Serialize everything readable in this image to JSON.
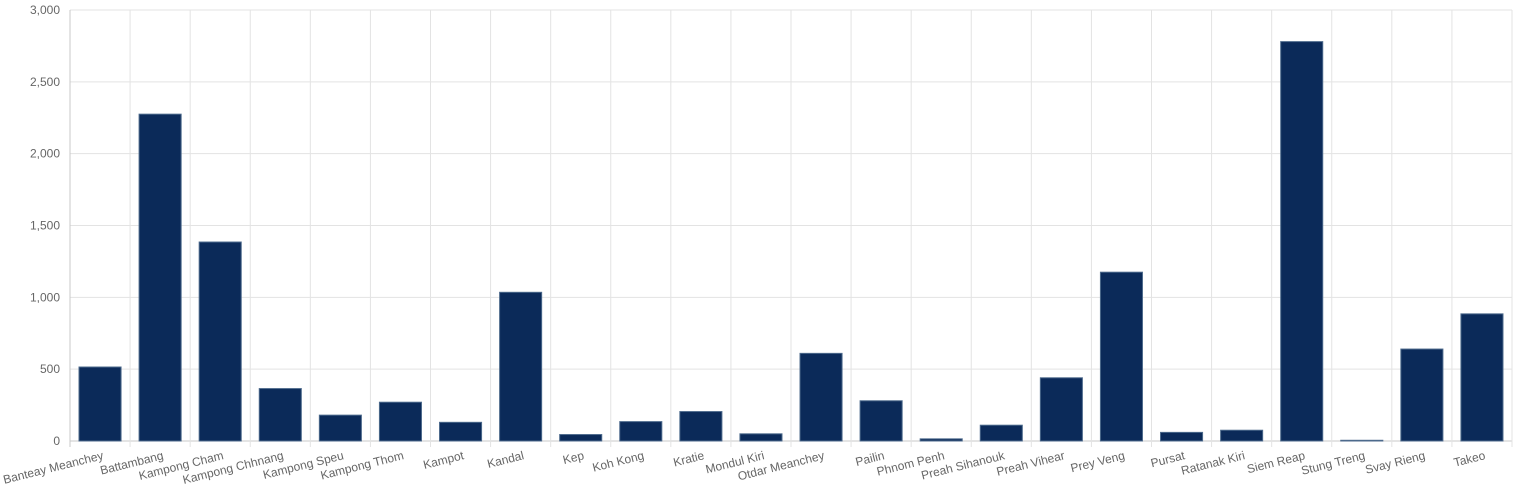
{
  "chart_data": {
    "type": "bar",
    "categories": [
      "Banteay Meanchey",
      "Battambang",
      "Kampong Cham",
      "Kampong Chhnang",
      "Kampong Speu",
      "Kampong Thom",
      "Kampot",
      "Kandal",
      "Kep",
      "Koh Kong",
      "Kratie",
      "Mondul Kiri",
      "Otdar Meanchey",
      "Pailin",
      "Phnom Penh",
      "Preah Sihanouk",
      "Preah Vihear",
      "Prey Veng",
      "Pursat",
      "Ratanak Kiri",
      "Siem Reap",
      "Stung Treng",
      "Svay Rieng",
      "Takeo"
    ],
    "values": [
      515,
      2275,
      1385,
      365,
      180,
      270,
      130,
      1035,
      45,
      135,
      205,
      50,
      610,
      280,
      15,
      110,
      440,
      1175,
      60,
      75,
      2780,
      5,
      640,
      885
    ],
    "ylim": [
      0,
      3000
    ],
    "yticks": [
      "0",
      "500",
      "1,000",
      "1,500",
      "2,000",
      "2,500",
      "3,000"
    ],
    "ytick_values": [
      0,
      500,
      1000,
      1500,
      2000,
      2500,
      3000
    ],
    "grid": true,
    "colors": {
      "bar": "#0b2a59",
      "bar_border": "#4d6a8c",
      "grid": "#e3e3e3"
    }
  }
}
